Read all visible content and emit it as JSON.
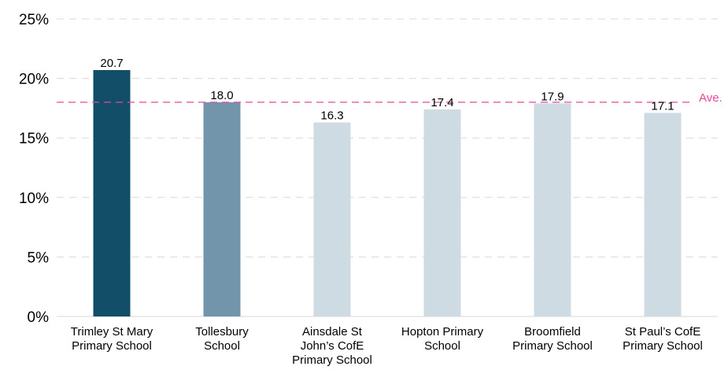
{
  "chart_data": {
    "type": "bar",
    "categories": [
      [
        "Trimley St Mary",
        "Primary School"
      ],
      [
        "Tollesbury",
        "School"
      ],
      [
        "Ainsdale St",
        "John’s CofE",
        "Primary School"
      ],
      [
        "Hopton Primary",
        "School"
      ],
      [
        "Broomfield",
        "Primary School"
      ],
      [
        "St Paul’s CofE",
        "Primary School"
      ]
    ],
    "values": [
      20.7,
      18.0,
      16.3,
      17.4,
      17.9,
      17.1
    ],
    "data_labels": [
      "20.7",
      "18.0",
      "16.3",
      "17.4",
      "17.9",
      "17.1"
    ],
    "bar_colors": [
      "#124e68",
      "#7395ac",
      "#cfdbe2",
      "#cfdbe2",
      "#cfdbe2",
      "#cfdbe2"
    ],
    "ylim": [
      0,
      25
    ],
    "yticks": [
      0,
      5,
      10,
      15,
      20,
      25
    ],
    "ytick_labels": [
      "0%",
      "5%",
      "10%",
      "15%",
      "20%",
      "25%"
    ],
    "grid": true,
    "grid_color": "#d9d9d9",
    "reference_line": {
      "label": "Ave.",
      "value": 18.0,
      "color": "#e8489a"
    },
    "title": "",
    "xlabel": "",
    "ylabel": ""
  }
}
